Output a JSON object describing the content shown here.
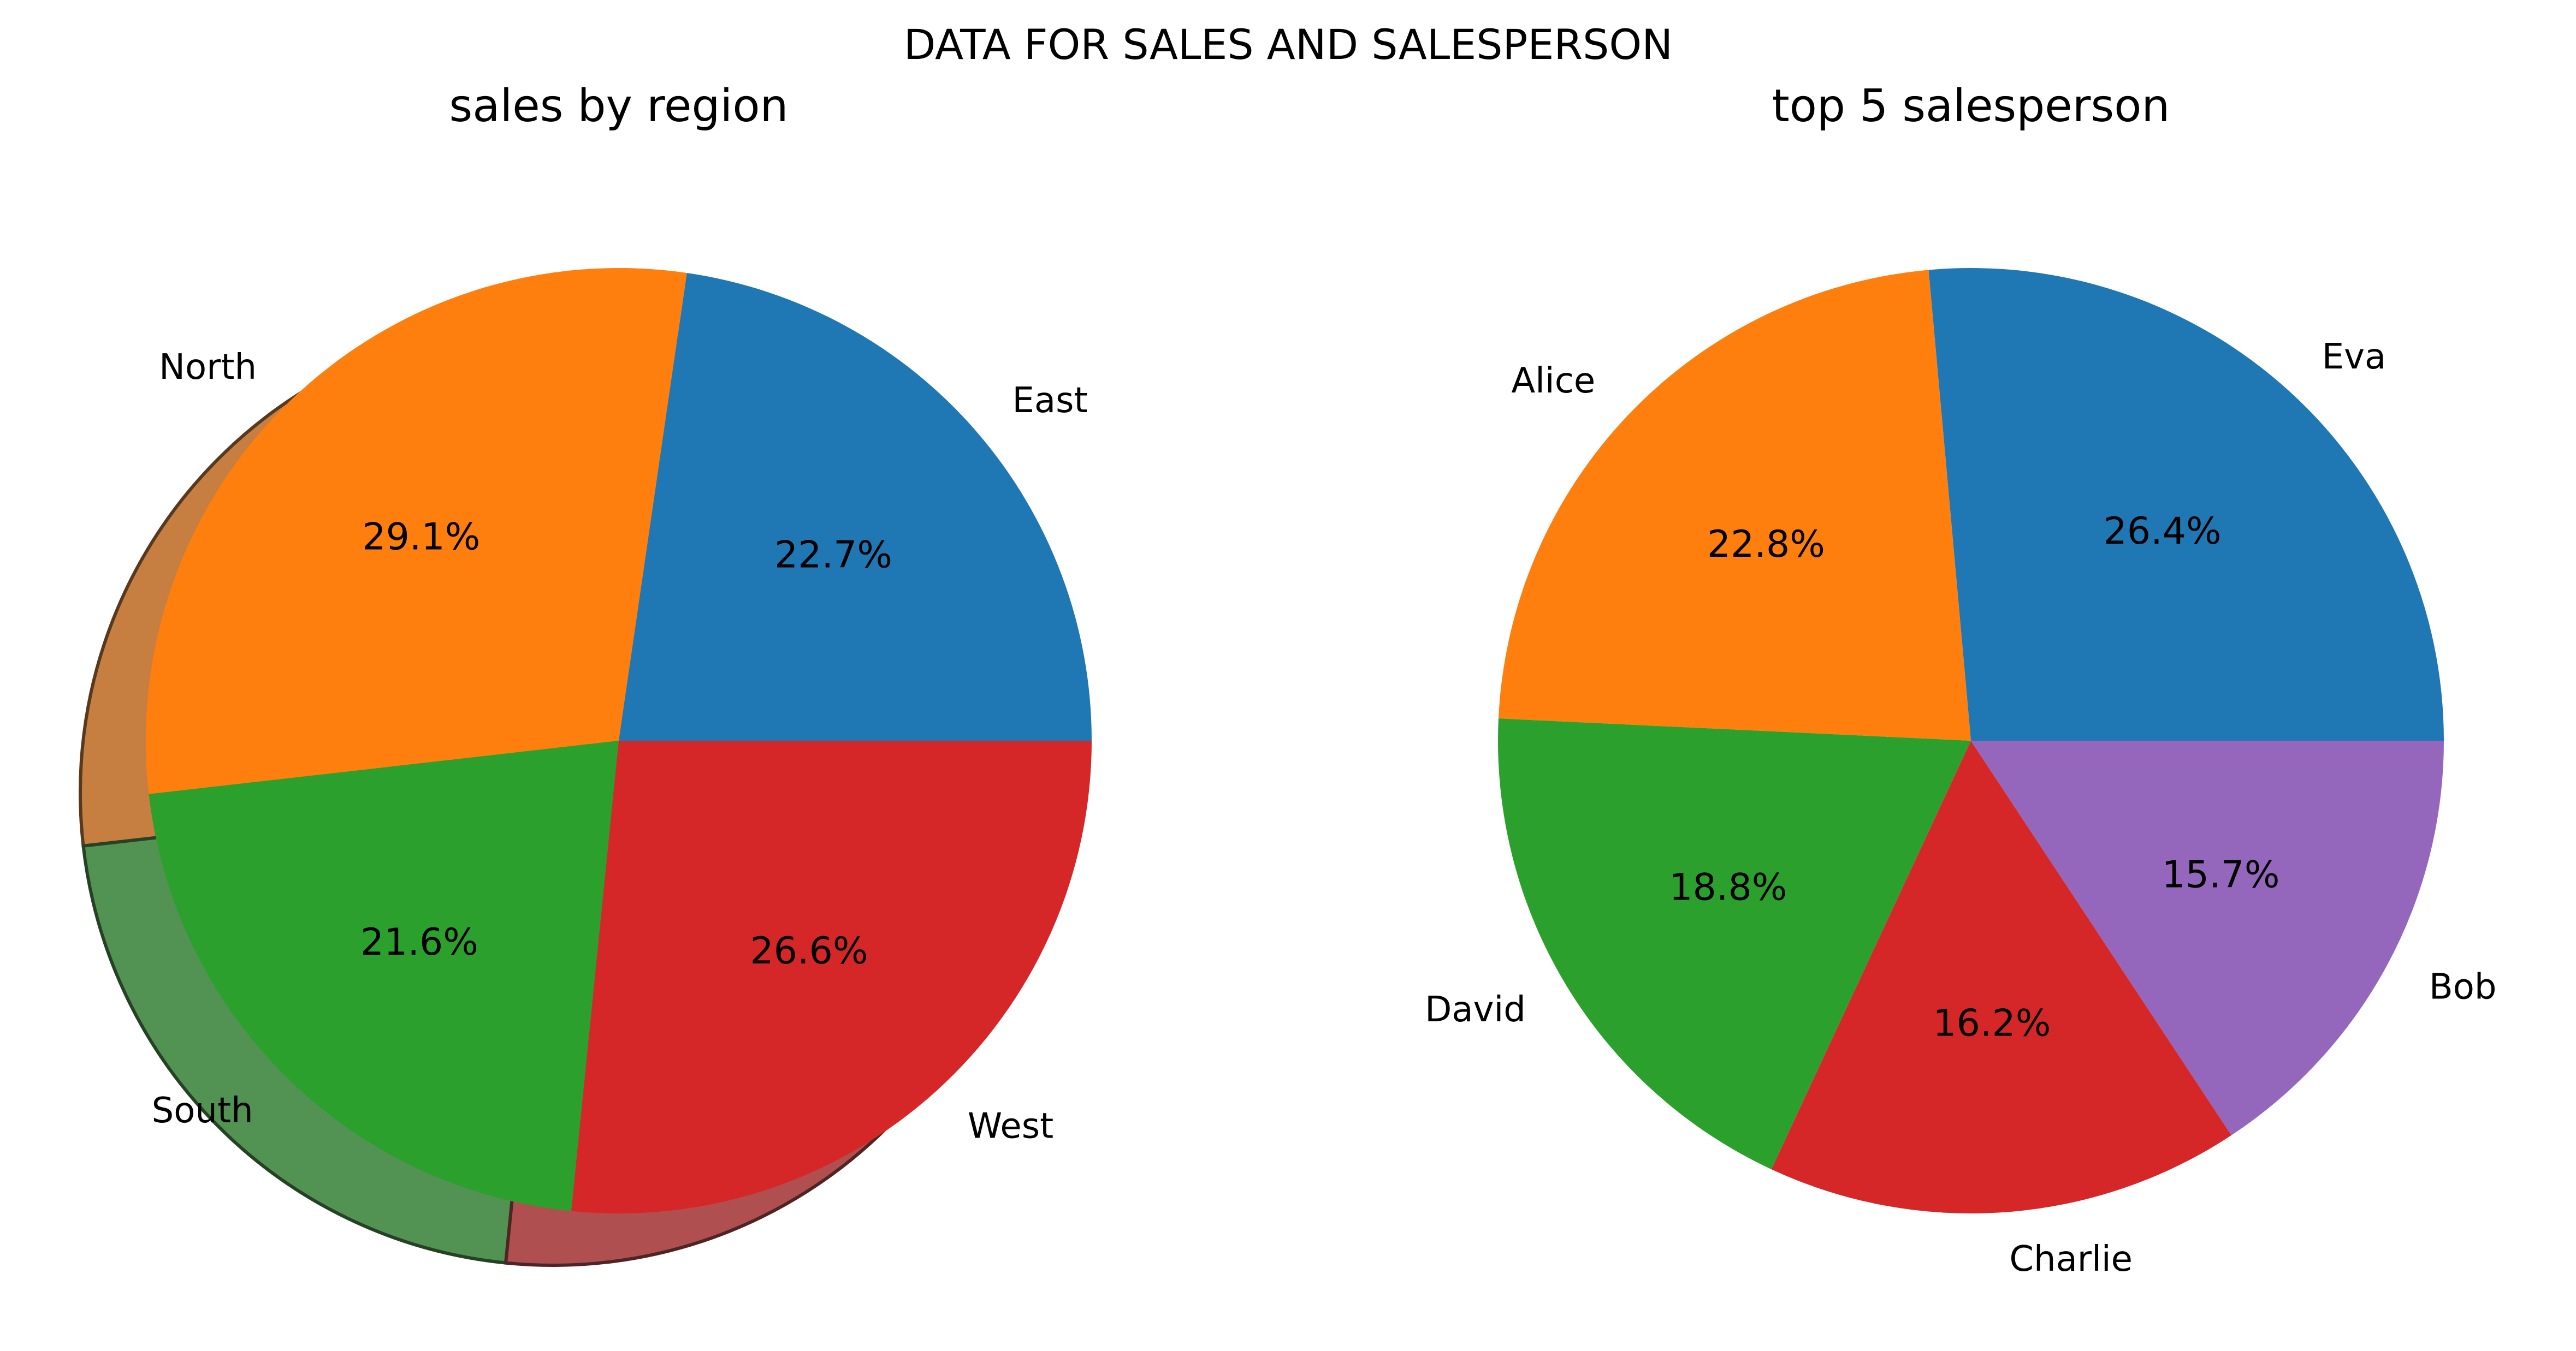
{
  "figure": {
    "title": "DATA FOR SALES AND SALESPERSON"
  },
  "chart_data": [
    {
      "type": "pie",
      "title": "sales by region",
      "labels": [
        "East",
        "North",
        "South",
        "West"
      ],
      "values": [
        22.7,
        29.1,
        21.6,
        26.6
      ],
      "percent_labels": [
        "22.7%",
        "29.1%",
        "21.6%",
        "26.6%"
      ],
      "colors": [
        "#1f77b4",
        "#ff7f0e",
        "#2ca02c",
        "#d62728"
      ],
      "start_angle": 0,
      "direction": "counterclockwise",
      "shadow": true
    },
    {
      "type": "pie",
      "title": "top 5 salesperson",
      "labels": [
        "Eva",
        "Alice",
        "David",
        "Charlie",
        "Bob"
      ],
      "values": [
        26.4,
        22.8,
        18.8,
        16.2,
        15.7
      ],
      "percent_labels": [
        "26.4%",
        "22.8%",
        "18.8%",
        "16.2%",
        "15.7%"
      ],
      "colors": [
        "#1f77b4",
        "#ff7f0e",
        "#2ca02c",
        "#d62728",
        "#9467bd"
      ],
      "start_angle": 0,
      "direction": "counterclockwise",
      "shadow": false
    }
  ]
}
